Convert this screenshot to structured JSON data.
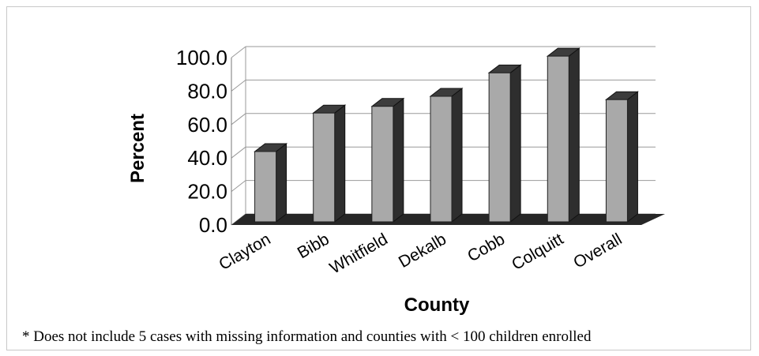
{
  "chart_data": {
    "type": "bar",
    "categories": [
      "Clayton",
      "Bibb",
      "Whitfield",
      "Dekalb",
      "Cobb",
      "Colquitt",
      "Overall"
    ],
    "values": [
      42,
      65,
      69,
      75,
      89,
      99,
      73
    ],
    "xlabel": "County",
    "ylabel": "Percent",
    "ylim": [
      0,
      100
    ],
    "yticks": [
      "0.0",
      "20.0",
      "40.0",
      "60.0",
      "80.0",
      "100.0"
    ],
    "grid": true,
    "legend": "none",
    "style": "3d-column",
    "colors": {
      "bar_front": "#a9a9a9",
      "bar_side": "#2e2e2e",
      "bar_top": "#3c3c3c",
      "floor": "#262626",
      "grid": "#999999"
    }
  },
  "footnote": "* Does not include 5 cases with missing information and counties with < 100 children enrolled"
}
